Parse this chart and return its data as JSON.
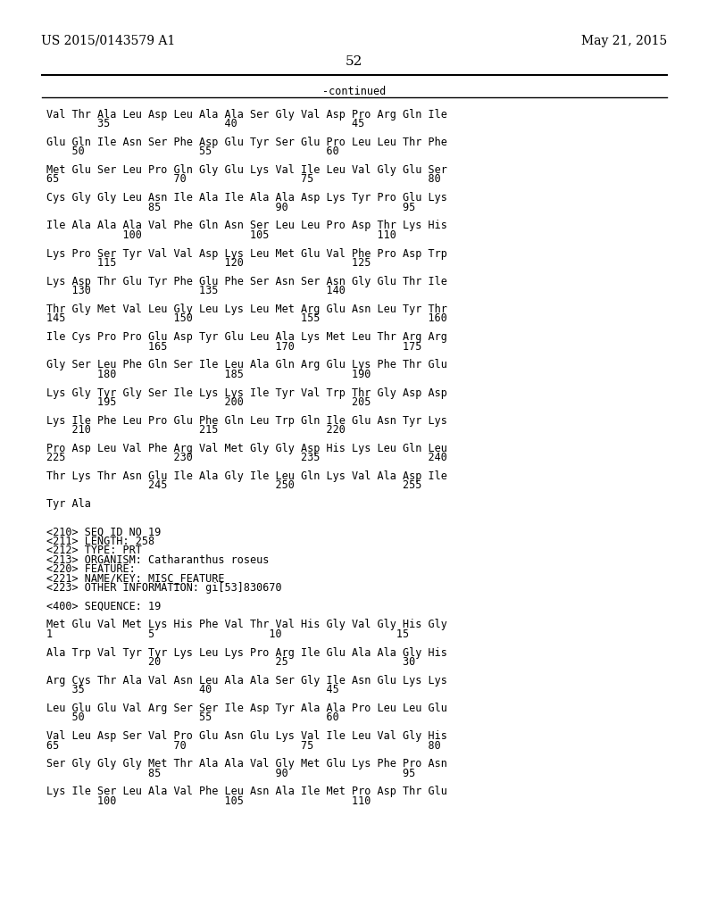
{
  "header_left": "US 2015/0143579 A1",
  "header_right": "May 21, 2015",
  "page_number": "52",
  "continued_label": "-continued",
  "background_color": "#ffffff",
  "text_color": "#000000",
  "font_size": 8.5,
  "header_font_size": 10,
  "page_num_font_size": 11,
  "lines": [
    "Val Thr Ala Leu Asp Leu Ala Ala Ser Gly Val Asp Pro Arg Gln Ile",
    "        35                  40                  45",
    "",
    "Glu Gln Ile Asn Ser Phe Asp Glu Tyr Ser Glu Pro Leu Leu Thr Phe",
    "    50                  55                  60",
    "",
    "Met Glu Ser Leu Pro Gln Gly Glu Lys Val Ile Leu Val Gly Glu Ser",
    "65                  70                  75                  80",
    "",
    "Cys Gly Gly Leu Asn Ile Ala Ile Ala Ala Asp Lys Tyr Pro Glu Lys",
    "                85                  90                  95",
    "",
    "Ile Ala Ala Ala Val Phe Gln Asn Ser Leu Leu Pro Asp Thr Lys His",
    "            100                 105                 110",
    "",
    "Lys Pro Ser Tyr Val Val Asp Lys Leu Met Glu Val Phe Pro Asp Trp",
    "        115                 120                 125",
    "",
    "Lys Asp Thr Glu Tyr Phe Glu Phe Ser Asn Ser Asn Gly Glu Thr Ile",
    "    130                 135                 140",
    "",
    "Thr Gly Met Val Leu Gly Leu Lys Leu Met Arg Glu Asn Leu Tyr Thr",
    "145                 150                 155                 160",
    "",
    "Ile Cys Pro Pro Glu Asp Tyr Glu Leu Ala Lys Met Leu Thr Arg Arg",
    "                165                 170                 175",
    "",
    "Gly Ser Leu Phe Gln Ser Ile Leu Ala Gln Arg Glu Lys Phe Thr Glu",
    "        180                 185                 190",
    "",
    "Lys Gly Tyr Gly Ser Ile Lys Lys Ile Tyr Val Trp Thr Gly Asp Asp",
    "        195                 200                 205",
    "",
    "Lys Ile Phe Leu Pro Glu Phe Gln Leu Trp Gln Ile Glu Asn Tyr Lys",
    "    210                 215                 220",
    "",
    "Pro Asp Leu Val Phe Arg Val Met Gly Gly Asp His Lys Leu Gln Leu",
    "225                 230                 235                 240",
    "",
    "Thr Lys Thr Asn Glu Ile Ala Gly Ile Leu Gln Lys Val Ala Asp Ile",
    "                245                 250                 255",
    "",
    "Tyr Ala",
    "",
    "",
    "<210> SEQ ID NO 19",
    "<211> LENGTH: 258",
    "<212> TYPE: PRT",
    "<213> ORGANISM: Catharanthus roseus",
    "<220> FEATURE:",
    "<221> NAME/KEY: MISC_FEATURE",
    "<223> OTHER INFORMATION: gi[53]830670",
    "",
    "<400> SEQUENCE: 19",
    "",
    "Met Glu Val Met Lys His Phe Val Thr Val His Gly Val Gly His Gly",
    "1               5                  10                  15",
    "",
    "Ala Trp Val Tyr Tyr Lys Leu Lys Pro Arg Ile Glu Ala Ala Gly His",
    "                20                  25                  30",
    "",
    "Arg Cys Thr Ala Val Asn Leu Ala Ala Ser Gly Ile Asn Glu Lys Lys",
    "    35                  40                  45",
    "",
    "Leu Glu Glu Val Arg Ser Ser Ile Asp Tyr Ala Ala Pro Leu Leu Glu",
    "    50                  55                  60",
    "",
    "Val Leu Asp Ser Val Pro Glu Asn Glu Lys Val Ile Leu Val Gly His",
    "65                  70                  75                  80",
    "",
    "Ser Gly Gly Gly Met Thr Ala Ala Val Gly Met Glu Lys Phe Pro Asn",
    "                85                  90                  95",
    "",
    "Lys Ile Ser Leu Ala Val Phe Leu Asn Ala Ile Met Pro Asp Thr Glu",
    "        100                 105                 110"
  ]
}
